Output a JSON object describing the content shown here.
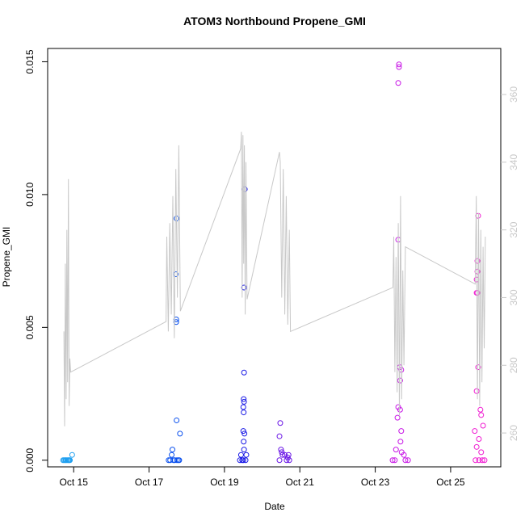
{
  "chart_data": {
    "type": "scatter",
    "title": "ATOM3 Northbound Propene_GMI",
    "xlabel": "Date",
    "ylabel": "Propene_GMI",
    "xlim": [
      14.31,
      26.33
    ],
    "xticks": [
      {
        "value": 15,
        "label": "Oct 15"
      },
      {
        "value": 17,
        "label": "Oct 17"
      },
      {
        "value": 19,
        "label": "Oct 19"
      },
      {
        "value": 21,
        "label": "Oct 21"
      },
      {
        "value": 23,
        "label": "Oct 23"
      },
      {
        "value": 25,
        "label": "Oct 25"
      }
    ],
    "ylim": [
      -0.00025,
      0.0155
    ],
    "yticks": [
      {
        "value": 0,
        "label": "0.000"
      },
      {
        "value": 0.005,
        "label": "0.005"
      },
      {
        "value": 0.01,
        "label": "0.010"
      },
      {
        "value": 0.015,
        "label": "0.015"
      }
    ],
    "y2lim": [
      250,
      373.6
    ],
    "y2ticks": [
      260,
      280,
      300,
      320,
      340,
      360
    ],
    "y2color": "#c8c8c8",
    "series": [
      {
        "color": "#1e9ff0",
        "x": [
          14.72,
          14.75,
          14.78,
          14.8,
          14.83,
          14.86,
          14.88,
          14.9,
          14.96
        ],
        "values": [
          0,
          0,
          0,
          0,
          0,
          0,
          0,
          0,
          0.0002
        ]
      },
      {
        "color": "#0a50ee",
        "x": [
          17.52,
          17.56,
          17.6,
          17.62,
          17.65,
          17.68,
          17.73,
          17.71,
          17.72,
          17.72,
          17.74,
          17.73,
          17.78,
          17.82,
          17.8
        ],
        "values": [
          0,
          0,
          0.0002,
          0.0004,
          0,
          0,
          0.0091,
          0.007,
          0.0053,
          0.0052,
          0,
          0.0015,
          0,
          0.001,
          0
        ]
      },
      {
        "color": "#1a1ae6",
        "x": [
          19.54,
          19.52,
          19.52,
          19.51,
          19.52,
          19.5,
          19.51,
          19.5,
          19.53,
          19.51,
          19.52,
          19.41,
          19.47,
          19.5,
          19.56,
          19.58,
          19.44
        ],
        "values": [
          0.0102,
          0.0065,
          0.0033,
          0.0023,
          0.0022,
          0.002,
          0.0018,
          0.0011,
          0.001,
          0.0007,
          0.0004,
          0,
          0,
          0,
          0,
          0.0002,
          0.0002
        ]
      },
      {
        "color": "#6a16e6",
        "x": [
          20.48,
          20.46,
          20.5,
          20.52,
          20.54,
          20.6,
          20.46,
          20.65,
          20.72,
          20.68,
          20.7
        ],
        "values": [
          0.0014,
          0.0009,
          0.0004,
          0.0003,
          0.0002,
          0.0002,
          0,
          0,
          0,
          0.0001,
          0.0002
        ]
      },
      {
        "color": "#c818e6",
        "x": [
          23.63,
          23.63,
          23.61,
          23.61,
          23.65,
          23.69,
          23.66,
          23.61,
          23.66,
          23.59,
          23.69,
          23.67,
          23.55,
          23.7,
          23.76,
          23.46,
          23.52,
          23.8,
          23.87
        ],
        "values": [
          0.0149,
          0.0148,
          0.0142,
          0.0083,
          0.0035,
          0.0034,
          0.003,
          0.002,
          0.0019,
          0.0016,
          0.0011,
          0.0007,
          0.0004,
          0.0003,
          0.0002,
          0,
          0,
          0,
          0
        ]
      },
      {
        "color": "#f01ed2",
        "x": [
          25.73,
          25.71,
          25.71,
          25.69,
          25.71,
          25.69,
          25.73,
          25.69,
          25.79,
          25.81,
          25.86,
          25.64,
          25.75,
          25.69,
          25.81,
          25.66,
          25.75,
          25.84,
          25.9
        ],
        "values": [
          0.0092,
          0.0075,
          0.0071,
          0.0068,
          0.0063,
          0.0063,
          0.0035,
          0.0026,
          0.0019,
          0.0017,
          0.0013,
          0.0011,
          0.0008,
          0.0005,
          0.0003,
          0,
          0,
          0,
          0
        ]
      },
      {
        "color": "#c8c8c8",
        "axis": "y2",
        "mode": "line",
        "x": [
          14.74,
          14.76,
          14.78,
          14.8,
          14.82,
          14.84,
          14.86,
          14.88,
          14.9,
          14.92,
          17.45,
          17.47,
          17.51,
          17.55,
          17.59,
          17.63,
          17.67,
          17.71,
          17.75,
          17.79,
          17.83,
          19.43,
          19.45,
          19.47,
          19.49,
          19.51,
          19.53,
          19.55,
          19.57,
          19.6,
          20.46,
          20.48,
          20.52,
          20.56,
          20.6,
          20.64,
          20.68,
          20.72,
          20.75,
          23.47,
          23.49,
          23.52,
          23.55,
          23.58,
          23.61,
          23.64,
          23.67,
          23.7,
          23.73,
          23.76,
          23.8,
          25.65,
          25.68,
          25.71,
          25.74,
          25.77,
          25.8,
          25.83,
          25.86,
          25.89,
          25.92
        ],
        "values": [
          290,
          262,
          310,
          270,
          320,
          275,
          335,
          268,
          282,
          278,
          292.9,
          318,
          290,
          322,
          295,
          330,
          288,
          338,
          300,
          345,
          296,
          344,
          349,
          300,
          348,
          310,
          345,
          295,
          340,
          299.5,
          343,
          340,
          300,
          338,
          295,
          330,
          292,
          320,
          290,
          303,
          318,
          278,
          312,
          272,
          322,
          265,
          330,
          270,
          308,
          280,
          315,
          304,
          330,
          270,
          325,
          268,
          320,
          275,
          315,
          285,
          318
        ]
      }
    ]
  }
}
